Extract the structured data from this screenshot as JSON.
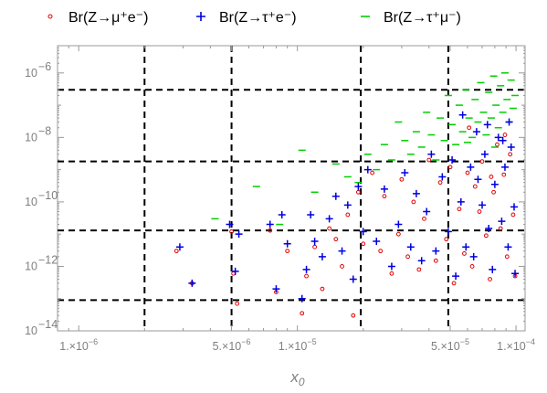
{
  "chart_data": {
    "type": "scatter",
    "xlabel": "x",
    "xlabel_sub": "0",
    "ylabel": "",
    "x_scale": "log",
    "y_scale": "log",
    "xlim": [
      8e-07,
      0.00011
    ],
    "ylim": [
      1e-14,
      7e-06
    ],
    "x_ticks": [
      {
        "value": 1e-06,
        "label": "1.×10",
        "exp": "−6"
      },
      {
        "value": 5e-06,
        "label": "5.×10",
        "exp": "−6"
      },
      {
        "value": 1e-05,
        "label": "1.×10",
        "exp": "−5"
      },
      {
        "value": 5e-05,
        "label": "5.×10",
        "exp": "−5"
      },
      {
        "value": 0.0001,
        "label": "1.×10",
        "exp": "−4"
      }
    ],
    "y_ticks": [
      {
        "value": 1e-14,
        "label": "10",
        "exp": "−14"
      },
      {
        "value": 1e-12,
        "label": "10",
        "exp": "−12"
      },
      {
        "value": 1e-10,
        "label": "10",
        "exp": "−10"
      },
      {
        "value": 1e-08,
        "label": "10",
        "exp": "−8"
      },
      {
        "value": 1e-06,
        "label": "10",
        "exp": "−6"
      }
    ],
    "reference_lines": {
      "vertical": [
        2e-06,
        5e-06,
        1.95e-05,
        4.9e-05
      ],
      "horizontal": [
        9e-14,
        1.3e-11,
        1.8e-09,
        3e-07
      ]
    },
    "grid": false,
    "legend_position": "top",
    "series": [
      {
        "name": "Br(Z→μ⁺e⁻)",
        "marker": "circle",
        "color": "#e00000",
        "points": [
          [
            2.8e-06,
            3e-12
          ],
          [
            3.3e-06,
            3e-13
          ],
          [
            5e-06,
            1.2e-11
          ],
          [
            5.3e-06,
            7e-14
          ],
          [
            5.1e-06,
            6e-13
          ],
          [
            7.5e-06,
            1.3e-11
          ],
          [
            8e-06,
            1.6e-13
          ],
          [
            9e-06,
            3e-12
          ],
          [
            1.05e-05,
            3.5e-14
          ],
          [
            1.1e-05,
            5e-13
          ],
          [
            1.2e-05,
            4e-12
          ],
          [
            1.3e-05,
            2e-13
          ],
          [
            1.4e-05,
            1.5e-11
          ],
          [
            1.5e-05,
            7e-12
          ],
          [
            1.6e-05,
            1e-12
          ],
          [
            1.7e-05,
            4e-11
          ],
          [
            1.8e-05,
            3e-14
          ],
          [
            1.9e-05,
            2e-10
          ],
          [
            2e-05,
            5e-12
          ],
          [
            2.2e-05,
            8e-10
          ],
          [
            2.4e-05,
            3e-12
          ],
          [
            2.5e-05,
            1.5e-10
          ],
          [
            2.7e-05,
            6e-13
          ],
          [
            2.9e-05,
            1e-11
          ],
          [
            3e-05,
            5e-10
          ],
          [
            3.2e-05,
            2e-12
          ],
          [
            3.4e-05,
            1e-10
          ],
          [
            3.6e-05,
            8e-13
          ],
          [
            3.8e-05,
            3e-11
          ],
          [
            4e-05,
            2e-09
          ],
          [
            4.3e-05,
            1.5e-12
          ],
          [
            4.5e-05,
            4e-10
          ],
          [
            4.8e-05,
            7e-12
          ],
          [
            5e-05,
            1.2e-09
          ],
          [
            5.2e-05,
            3e-13
          ],
          [
            5.5e-05,
            6e-11
          ],
          [
            5.8e-05,
            2.5e-12
          ],
          [
            6e-05,
            8e-10
          ],
          [
            6.3e-05,
            1e-12
          ],
          [
            6.5e-05,
            3e-10
          ],
          [
            6.8e-05,
            5e-11
          ],
          [
            7e-05,
            1.8e-09
          ],
          [
            7.3e-05,
            9e-12
          ],
          [
            7.6e-05,
            4e-13
          ],
          [
            7.9e-05,
            2e-10
          ],
          [
            8.2e-05,
            6e-09
          ],
          [
            8.5e-05,
            1.5e-11
          ],
          [
            8.8e-05,
            7e-10
          ],
          [
            9.1e-05,
            2e-12
          ],
          [
            9.4e-05,
            3e-09
          ],
          [
            9.7e-05,
            4e-11
          ],
          [
            9.9e-05,
            5e-13
          ],
          [
            6.1e-05,
            2e-08
          ],
          [
            8.9e-05,
            1.2e-08
          ],
          [
            7.7e-05,
            6e-10
          ]
        ]
      },
      {
        "name": "Br(Z→τ⁺e⁻)",
        "marker": "plus",
        "color": "#0000e0",
        "points": [
          [
            2.9e-06,
            4e-12
          ],
          [
            3.3e-06,
            3e-13
          ],
          [
            4.9e-06,
            2e-11
          ],
          [
            5.2e-06,
            7e-13
          ],
          [
            5.4e-06,
            1e-11
          ],
          [
            7.5e-06,
            2e-11
          ],
          [
            8e-06,
            2e-13
          ],
          [
            8.5e-06,
            4e-11
          ],
          [
            9e-06,
            5e-12
          ],
          [
            1.05e-05,
            1e-13
          ],
          [
            1.1e-05,
            8e-13
          ],
          [
            1.15e-05,
            4e-11
          ],
          [
            1.2e-05,
            6e-12
          ],
          [
            1.3e-05,
            2e-12
          ],
          [
            1.4e-05,
            3e-11
          ],
          [
            1.5e-05,
            1.5e-10
          ],
          [
            1.6e-05,
            3e-12
          ],
          [
            1.7e-05,
            8e-11
          ],
          [
            1.8e-05,
            4e-13
          ],
          [
            1.9e-05,
            3e-10
          ],
          [
            2e-05,
            1.2e-11
          ],
          [
            2.1e-05,
            1e-09
          ],
          [
            2.3e-05,
            6e-12
          ],
          [
            2.5e-05,
            2.5e-10
          ],
          [
            2.7e-05,
            1e-12
          ],
          [
            2.9e-05,
            2e-11
          ],
          [
            3.1e-05,
            8e-10
          ],
          [
            3.3e-05,
            4e-12
          ],
          [
            3.5e-05,
            1.8e-10
          ],
          [
            3.7e-05,
            1.5e-12
          ],
          [
            3.9e-05,
            5e-11
          ],
          [
            4.1e-05,
            3e-09
          ],
          [
            4.3e-05,
            3e-12
          ],
          [
            4.6e-05,
            6e-10
          ],
          [
            4.9e-05,
            1.2e-11
          ],
          [
            5.1e-05,
            2e-09
          ],
          [
            5.3e-05,
            5e-13
          ],
          [
            5.6e-05,
            1e-10
          ],
          [
            5.9e-05,
            4e-12
          ],
          [
            6.2e-05,
            1.2e-09
          ],
          [
            6.4e-05,
            2e-12
          ],
          [
            6.7e-05,
            5e-10
          ],
          [
            7e-05,
            8e-11
          ],
          [
            7.2e-05,
            3e-09
          ],
          [
            7.5e-05,
            1.5e-11
          ],
          [
            7.8e-05,
            8e-13
          ],
          [
            8e-05,
            3.5e-10
          ],
          [
            8.3e-05,
            1e-08
          ],
          [
            8.6e-05,
            2.5e-11
          ],
          [
            8.9e-05,
            1.2e-09
          ],
          [
            9.2e-05,
            4e-12
          ],
          [
            9.5e-05,
            5e-09
          ],
          [
            9.8e-05,
            7e-11
          ],
          [
            9.9e-05,
            6e-13
          ],
          [
            5.7e-05,
            5e-08
          ],
          [
            7.4e-05,
            2.5e-08
          ],
          [
            9.3e-05,
            3e-08
          ],
          [
            6.6e-05,
            1.5e-08
          ],
          [
            8.7e-05,
            8e-09
          ]
        ]
      },
      {
        "name": "Br(Z→τ⁺μ⁻)",
        "marker": "dash",
        "color": "#00d000",
        "points": [
          [
            4.2e-06,
            3e-11
          ],
          [
            6.5e-06,
            3e-10
          ],
          [
            8.3e-06,
            2e-11
          ],
          [
            1.05e-05,
            4e-09
          ],
          [
            1.2e-05,
            2e-10
          ],
          [
            1.5e-05,
            1.5e-09
          ],
          [
            1.7e-05,
            6e-10
          ],
          [
            1.9e-05,
            4e-10
          ],
          [
            2.1e-05,
            3e-09
          ],
          [
            2.3e-05,
            1e-09
          ],
          [
            2.5e-05,
            6e-09
          ],
          [
            2.7e-05,
            2e-09
          ],
          [
            2.9e-05,
            3e-08
          ],
          [
            3.1e-05,
            8e-09
          ],
          [
            3.3e-05,
            3e-09
          ],
          [
            3.5e-05,
            1.5e-08
          ],
          [
            3.7e-05,
            5e-09
          ],
          [
            3.9e-05,
            6e-08
          ],
          [
            4.1e-05,
            1.2e-08
          ],
          [
            4.3e-05,
            2e-09
          ],
          [
            4.5e-05,
            4e-08
          ],
          [
            4.7e-05,
            8e-09
          ],
          [
            4.9e-05,
            2e-07
          ],
          [
            5.1e-05,
            2.5e-08
          ],
          [
            5.3e-05,
            6e-09
          ],
          [
            5.5e-05,
            1e-07
          ],
          [
            5.7e-05,
            1.5e-08
          ],
          [
            5.9e-05,
            3e-07
          ],
          [
            6.1e-05,
            4e-08
          ],
          [
            6.3e-05,
            1e-08
          ],
          [
            6.5e-05,
            1.5e-07
          ],
          [
            6.7e-05,
            3e-08
          ],
          [
            6.9e-05,
            5e-07
          ],
          [
            7.1e-05,
            6e-08
          ],
          [
            7.3e-05,
            1.2e-08
          ],
          [
            7.5e-05,
            2.5e-07
          ],
          [
            7.7e-05,
            4e-08
          ],
          [
            7.9e-05,
            8e-07
          ],
          [
            8.1e-05,
            1e-07
          ],
          [
            8.3e-05,
            2e-08
          ],
          [
            8.5e-05,
            4e-07
          ],
          [
            8.7e-05,
            6e-08
          ],
          [
            8.9e-05,
            1e-06
          ],
          [
            9.1e-05,
            1.5e-07
          ],
          [
            9.3e-05,
            3e-08
          ],
          [
            9.5e-05,
            6e-07
          ],
          [
            9.7e-05,
            8e-08
          ],
          [
            9.9e-05,
            2e-07
          ],
          [
            6e-05,
            7e-09
          ],
          [
            8e-05,
            5e-09
          ]
        ]
      }
    ]
  }
}
